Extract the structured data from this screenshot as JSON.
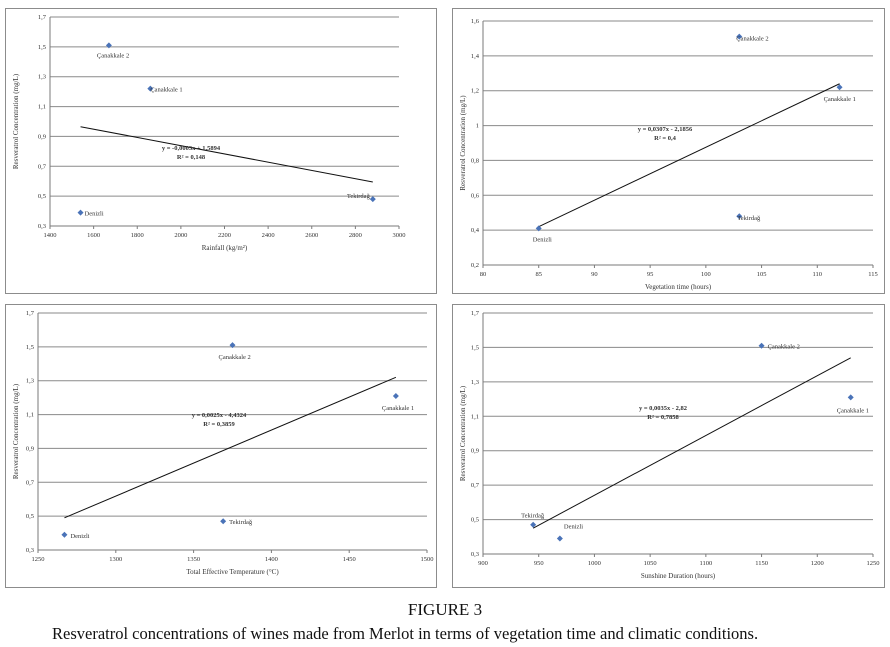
{
  "figure": {
    "label": "FIGURE 3",
    "caption": "Resveratrol concentrations of wines made from Merlot in terms of vegetation time and climatic conditions."
  },
  "chart_data": [
    {
      "type": "scatter",
      "xlabel": "Rainfall (kg/m²)",
      "ylabel": "Resveratrol Concentration (mg/L)",
      "xlim": [
        1400,
        3000
      ],
      "ylim": [
        0.3,
        1.7
      ],
      "xticks": [
        "1400",
        "1600",
        "1800",
        "2000",
        "2200",
        "2400",
        "2600",
        "2800",
        "3000"
      ],
      "yticks": [
        "0,3",
        "0,5",
        "0,7",
        "0,9",
        "1,1",
        "1,3",
        "1,5",
        "1,7"
      ],
      "points": [
        {
          "label": "Çanakkale 2",
          "x": 1670,
          "y": 1.51
        },
        {
          "label": "Çanakkale 1",
          "x": 1860,
          "y": 1.22
        },
        {
          "label": "Denizli",
          "x": 1540,
          "y": 0.39
        },
        {
          "label": "Tekirdağ",
          "x": 2880,
          "y": 0.48
        }
      ],
      "trendline": {
        "x0": 1540,
        "y0": 0.965,
        "x1": 2880,
        "y1": 0.595
      },
      "equation": "y = -0,0003x + 1,5894",
      "r2": "R² = 0,148",
      "grid": "horizontal"
    },
    {
      "type": "scatter",
      "xlabel": "Vegetation time (hours)",
      "ylabel": "Resveratrol Concentration (mg/L)",
      "xlim": [
        80,
        115
      ],
      "ylim": [
        0.2,
        1.6
      ],
      "xticks": [
        "80",
        "85",
        "90",
        "95",
        "100",
        "105",
        "110",
        "115"
      ],
      "yticks": [
        "0,2",
        "0,4",
        "0,6",
        "0,8",
        "1",
        "1,2",
        "1,4",
        "1,6"
      ],
      "points": [
        {
          "label": "Çanakkale 2",
          "x": 103,
          "y": 1.51
        },
        {
          "label": "Çanakkale 1",
          "x": 112,
          "y": 1.22
        },
        {
          "label": "Denizli",
          "x": 85,
          "y": 0.41
        },
        {
          "label": "Tekirdağ",
          "x": 103,
          "y": 0.48
        }
      ],
      "trendline": {
        "x0": 85,
        "y0": 0.42,
        "x1": 112,
        "y1": 1.24
      },
      "equation": "y = 0,0307x - 2,1856",
      "r2": "R² = 0,4",
      "grid": "horizontal"
    },
    {
      "type": "scatter",
      "xlabel": "Total Effective Temperature (°C)",
      "ylabel": "Resveratrol Concentration (mg/L)",
      "xlim": [
        1250,
        1500
      ],
      "ylim": [
        0.3,
        1.7
      ],
      "xticks": [
        "1250",
        "1300",
        "1350",
        "1400",
        "1450",
        "1500"
      ],
      "yticks": [
        "0,3",
        "0,5",
        "0,7",
        "0,9",
        "1,1",
        "1,3",
        "1,5",
        "1,7"
      ],
      "points": [
        {
          "label": "Çanakkale 2",
          "x": 1375,
          "y": 1.51
        },
        {
          "label": "Çanakkale 1",
          "x": 1480,
          "y": 1.21
        },
        {
          "label": "Denizli",
          "x": 1267,
          "y": 0.39
        },
        {
          "label": "Tekirdağ",
          "x": 1369,
          "y": 0.47
        }
      ],
      "trendline": {
        "x0": 1267,
        "y0": 0.49,
        "x1": 1480,
        "y1": 1.32
      },
      "equation": "y = 0,0025x - 4,4324",
      "r2": "R² = 0,3859",
      "grid": "horizontal"
    },
    {
      "type": "scatter",
      "xlabel": "Sunshine Duration (hours)",
      "ylabel": "Resveratrol Concentration (mg/L)",
      "xlim": [
        900,
        1250
      ],
      "ylim": [
        0.3,
        1.7
      ],
      "xticks": [
        "900",
        "950",
        "1000",
        "1050",
        "1100",
        "1150",
        "1200",
        "1250"
      ],
      "yticks": [
        "0,3",
        "0,5",
        "0,7",
        "0,9",
        "1,1",
        "1,3",
        "1,5",
        "1,7"
      ],
      "points": [
        {
          "label": "Çanakkale 2",
          "x": 1150,
          "y": 1.51
        },
        {
          "label": "Çanakkale 1",
          "x": 1230,
          "y": 1.21
        },
        {
          "label": "Tekirdağ",
          "x": 945,
          "y": 0.47
        },
        {
          "label": "Denizli",
          "x": 969,
          "y": 0.39
        }
      ],
      "trendline": {
        "x0": 945,
        "y0": 0.45,
        "x1": 1230,
        "y1": 1.44
      },
      "equation": "y = 0,0035x - 2,82",
      "r2": "R² = 0,7858",
      "grid": "horizontal"
    }
  ]
}
